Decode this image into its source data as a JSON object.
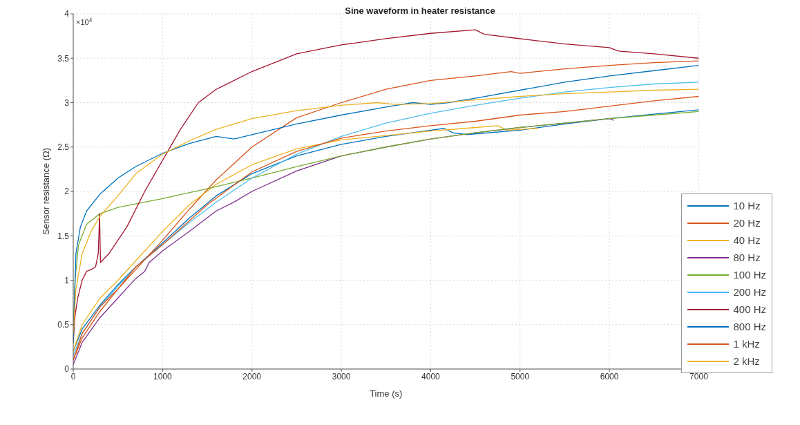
{
  "chart_data": {
    "type": "line",
    "title": "Sine waveform in heater resistance",
    "xlabel": "Time (s)",
    "ylabel": "Sensor resistance (Ω)",
    "annotations": [
      "×10$^{4}$"
    ],
    "xlim": [
      0,
      7000
    ],
    "xticks": [
      0,
      1000,
      2000,
      3000,
      4000,
      5000,
      6000,
      7000
    ],
    "ylim": [
      0,
      4
    ],
    "yticks": [
      0,
      0.5,
      1,
      1.5,
      2,
      2.5,
      3,
      3.5,
      4
    ],
    "grid": true,
    "legend": "bottom right",
    "marker": "none",
    "line_style": "solid",
    "series": [
      {
        "name": "10 Hz",
        "color": "#0072bd",
        "x": [
          0,
          100,
          300,
          500,
          700,
          1000,
          1300,
          1600,
          2000,
          2500,
          3000,
          3500,
          4000,
          4150,
          4250,
          4400,
          5000,
          5500,
          6000,
          6500,
          7000
        ],
        "values": [
          0.2,
          0.45,
          0.72,
          0.95,
          1.15,
          1.42,
          1.7,
          1.95,
          2.2,
          2.4,
          2.53,
          2.62,
          2.69,
          2.71,
          2.66,
          2.64,
          2.69,
          2.76,
          2.82,
          2.87,
          2.92
        ]
      },
      {
        "name": "20 Hz",
        "color": "#d95319",
        "x": [
          0,
          100,
          300,
          500,
          700,
          1000,
          1300,
          1600,
          2000,
          2500,
          3000,
          3500,
          4000,
          4500,
          4900,
          5000,
          5500,
          6000,
          6500,
          7000
        ],
        "values": [
          0.1,
          0.35,
          0.65,
          0.9,
          1.12,
          1.45,
          1.8,
          2.13,
          2.5,
          2.83,
          3.0,
          3.15,
          3.25,
          3.3,
          3.35,
          3.33,
          3.38,
          3.42,
          3.45,
          3.47
        ]
      },
      {
        "name": "40 Hz",
        "color": "#edb120",
        "x": [
          0,
          100,
          300,
          500,
          700,
          1000,
          1300,
          1600,
          2000,
          2500,
          3000,
          3500,
          4000,
          4500,
          4750,
          4850,
          5200
        ],
        "values": [
          0.2,
          0.5,
          0.8,
          1.0,
          1.22,
          1.55,
          1.85,
          2.08,
          2.3,
          2.48,
          2.58,
          2.63,
          2.68,
          2.72,
          2.74,
          2.69,
          2.71
        ]
      },
      {
        "name": "80 Hz",
        "color": "#7e2f8e",
        "x": [
          0,
          100,
          300,
          500,
          700,
          800,
          850,
          1000,
          1300,
          1600,
          1800,
          2000,
          2500,
          3000,
          3500,
          4000,
          4500,
          5000,
          5500,
          6000,
          6050
        ],
        "values": [
          0.05,
          0.3,
          0.58,
          0.8,
          1.02,
          1.1,
          1.2,
          1.33,
          1.55,
          1.78,
          1.88,
          2.0,
          2.23,
          2.4,
          2.5,
          2.59,
          2.66,
          2.72,
          2.77,
          2.82,
          2.8
        ]
      },
      {
        "name": "100 Hz",
        "color": "#77ac30",
        "x": [
          0,
          20,
          60,
          150,
          300,
          500,
          1000,
          1500,
          2000,
          2500,
          3000,
          3500,
          4000,
          4500,
          5000,
          5500,
          6000,
          6500,
          7000
        ],
        "values": [
          0.4,
          1.0,
          1.4,
          1.63,
          1.75,
          1.82,
          1.92,
          2.03,
          2.15,
          2.28,
          2.4,
          2.5,
          2.59,
          2.66,
          2.72,
          2.77,
          2.82,
          2.86,
          2.9
        ]
      },
      {
        "name": "200 Hz",
        "color": "#4dbeee",
        "x": [
          0,
          100,
          300,
          500,
          700,
          1000,
          1300,
          1600,
          2000,
          2500,
          3000,
          3500,
          4000,
          4500,
          5000,
          5500,
          6000,
          6500,
          7000
        ],
        "values": [
          0.15,
          0.4,
          0.7,
          0.93,
          1.15,
          1.4,
          1.65,
          1.88,
          2.15,
          2.42,
          2.62,
          2.77,
          2.88,
          2.97,
          3.05,
          3.12,
          3.17,
          3.21,
          3.23
        ]
      },
      {
        "name": "400 Hz",
        "color": "#a2142f",
        "x": [
          0,
          20,
          50,
          100,
          150,
          200,
          250,
          280,
          295,
          305,
          400,
          600,
          800,
          1000,
          1200,
          1400,
          1600,
          1700,
          2000,
          2500,
          3000,
          3500,
          4000,
          4500,
          4600,
          5000,
          5500,
          6000,
          6100,
          6500,
          7000
        ],
        "values": [
          0.3,
          0.6,
          0.8,
          1.0,
          1.1,
          1.12,
          1.15,
          1.3,
          1.75,
          1.2,
          1.3,
          1.6,
          2.0,
          2.35,
          2.7,
          3.0,
          3.15,
          3.2,
          3.35,
          3.55,
          3.65,
          3.72,
          3.78,
          3.82,
          3.77,
          3.72,
          3.66,
          3.62,
          3.58,
          3.55,
          3.5
        ]
      },
      {
        "name": "800 Hz",
        "color": "#0072bd",
        "x": [
          0,
          30,
          80,
          150,
          300,
          500,
          700,
          1000,
          1300,
          1600,
          1800,
          2000,
          2500,
          3000,
          3500,
          3800,
          4000,
          4200,
          4500,
          5000,
          5500,
          6000,
          6500,
          7000
        ],
        "values": [
          0.3,
          1.3,
          1.6,
          1.78,
          1.97,
          2.15,
          2.28,
          2.43,
          2.54,
          2.62,
          2.59,
          2.64,
          2.76,
          2.86,
          2.95,
          3.0,
          2.98,
          3.0,
          3.05,
          3.14,
          3.23,
          3.3,
          3.36,
          3.42
        ]
      },
      {
        "name": "1 kHz",
        "color": "#d95319",
        "x": [
          0,
          100,
          300,
          500,
          700,
          1000,
          1500,
          2000,
          2500,
          3000,
          3500,
          4000,
          4500,
          5000,
          5500,
          6000,
          6500,
          7000
        ],
        "values": [
          0.1,
          0.4,
          0.7,
          0.9,
          1.15,
          1.4,
          1.85,
          2.22,
          2.45,
          2.6,
          2.68,
          2.74,
          2.79,
          2.86,
          2.9,
          2.96,
          3.02,
          3.07
        ]
      },
      {
        "name": "2 kHz",
        "color": "#edb120",
        "x": [
          0,
          30,
          100,
          200,
          300,
          500,
          700,
          1000,
          1300,
          1600,
          2000,
          2500,
          3000,
          3400,
          3600,
          4000,
          4500,
          5000,
          5500,
          6000,
          6500,
          7000
        ],
        "values": [
          0.4,
          0.9,
          1.3,
          1.55,
          1.72,
          1.95,
          2.2,
          2.42,
          2.57,
          2.7,
          2.82,
          2.91,
          2.97,
          3.0,
          2.98,
          2.99,
          3.03,
          3.07,
          3.1,
          3.12,
          3.14,
          3.15
        ]
      }
    ]
  }
}
